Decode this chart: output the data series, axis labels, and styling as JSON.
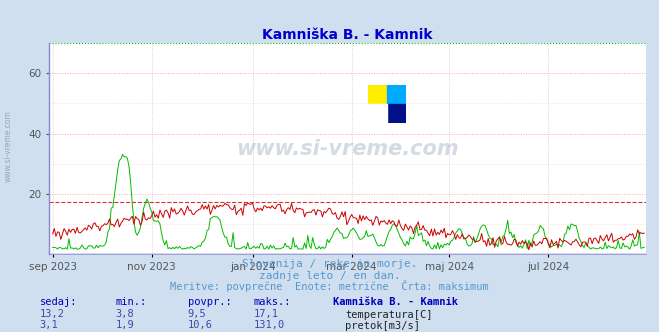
{
  "title": "Kamniška B. - Kamnik",
  "title_color": "#0000cc",
  "bg_color": "#d0dff0",
  "plot_bg_color": "#ffffff",
  "grid_color_major": "#ffbbbb",
  "grid_color_minor": "#ddcccc",
  "grid_color_v": "#ccbbdd",
  "temp_color": "#cc0000",
  "flow_color": "#00bb00",
  "temp_max_val": 17.1,
  "flow_max_val": 131.0,
  "ylim": [
    0,
    70
  ],
  "yticks": [
    20,
    40,
    60
  ],
  "watermark": "www.si-vreme.com",
  "watermark_color": "#1a3a6a",
  "sub_text1": "Slovenija / reke in morje.",
  "sub_text2": "zadnje leto / en dan.",
  "sub_text3": "Meritve: povprečne  Enote: metrične  Črta: maksimum",
  "sub_color": "#5599cc",
  "table_header": [
    "sedaj:",
    "min.:",
    "povpr.:",
    "maks.:",
    "Kamniška B. - Kamnik"
  ],
  "table_header_color": "#0000bb",
  "table_row1": [
    "13,2",
    "3,8",
    "9,5",
    "17,1"
  ],
  "table_row2": [
    "3,1",
    "1,9",
    "10,6",
    "131,0"
  ],
  "table_color": "#4444aa",
  "legend_temp": "temperatura[C]",
  "legend_flow": "pretok[m3/s]",
  "x_tick_labels": [
    "sep 2023",
    "nov 2023",
    "jan 2024",
    "mar 2024",
    "maj 2024",
    "jul 2024"
  ],
  "x_tick_positions": [
    0,
    61,
    123,
    184,
    244,
    305
  ],
  "figsize": [
    6.59,
    3.32
  ],
  "dpi": 100,
  "left_spine_color": "#8888cc",
  "bottom_spine_color": "#8888cc"
}
